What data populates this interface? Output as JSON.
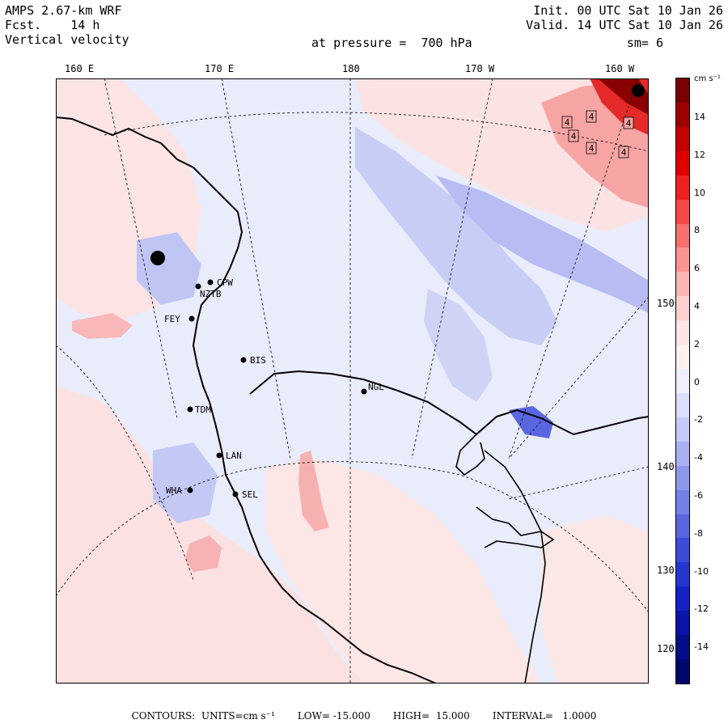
{
  "header": {
    "model": "AMPS 2.67-km WRF",
    "fcst_label": "Fcst.",
    "fcst_value": "14 h",
    "field": "Vertical velocity",
    "init": "Init. 00 UTC Sat 10 Jan 26",
    "valid": "Valid. 14 UTC Sat 10 Jan 26",
    "pressure": "at pressure =  700 hPa",
    "smoothing": "sm= 6"
  },
  "longitude_labels": [
    "160 E",
    "170 E",
    "180",
    "170 W",
    "160 W"
  ],
  "latitude_labels": [
    "150 W",
    "140 W",
    "130 W",
    "120 W"
  ],
  "stations": [
    "CPW",
    "NZTB",
    "FEY",
    "BIS",
    "NGL",
    "TDM",
    "LAN",
    "WHA",
    "SEL"
  ],
  "contour_labels": [
    "4",
    "4",
    "4",
    "4",
    "4",
    "4"
  ],
  "colorbar": {
    "unit": "cm s⁻¹",
    "ticks": [
      "14",
      "12",
      "10",
      "8",
      "6",
      "4",
      "2",
      "0",
      "-2",
      "-4",
      "-6",
      "-8",
      "-10",
      "-12",
      "-14"
    ],
    "colors": [
      "#7a0000",
      "#9e0000",
      "#c40000",
      "#e00000",
      "#f02020",
      "#f54848",
      "#f77070",
      "#f99494",
      "#fbb4b4",
      "#fcd0d0",
      "#fde4e4",
      "#fff0ee",
      "#eef0ff",
      "#dcdffb",
      "#c4c9f7",
      "#aab0f2",
      "#8f97ec",
      "#7580e6",
      "#5a66e0",
      "#3c4bd8",
      "#2536d0",
      "#1421c4",
      "#0a14a8",
      "#040c88",
      "#00066a"
    ]
  },
  "footer": {
    "contours": "CONTOURS:  UNITS=cm s⁻¹",
    "low": "LOW= -15.000",
    "high": "HIGH=  15.000",
    "interval": "INTERVAL=   1.0000"
  }
}
